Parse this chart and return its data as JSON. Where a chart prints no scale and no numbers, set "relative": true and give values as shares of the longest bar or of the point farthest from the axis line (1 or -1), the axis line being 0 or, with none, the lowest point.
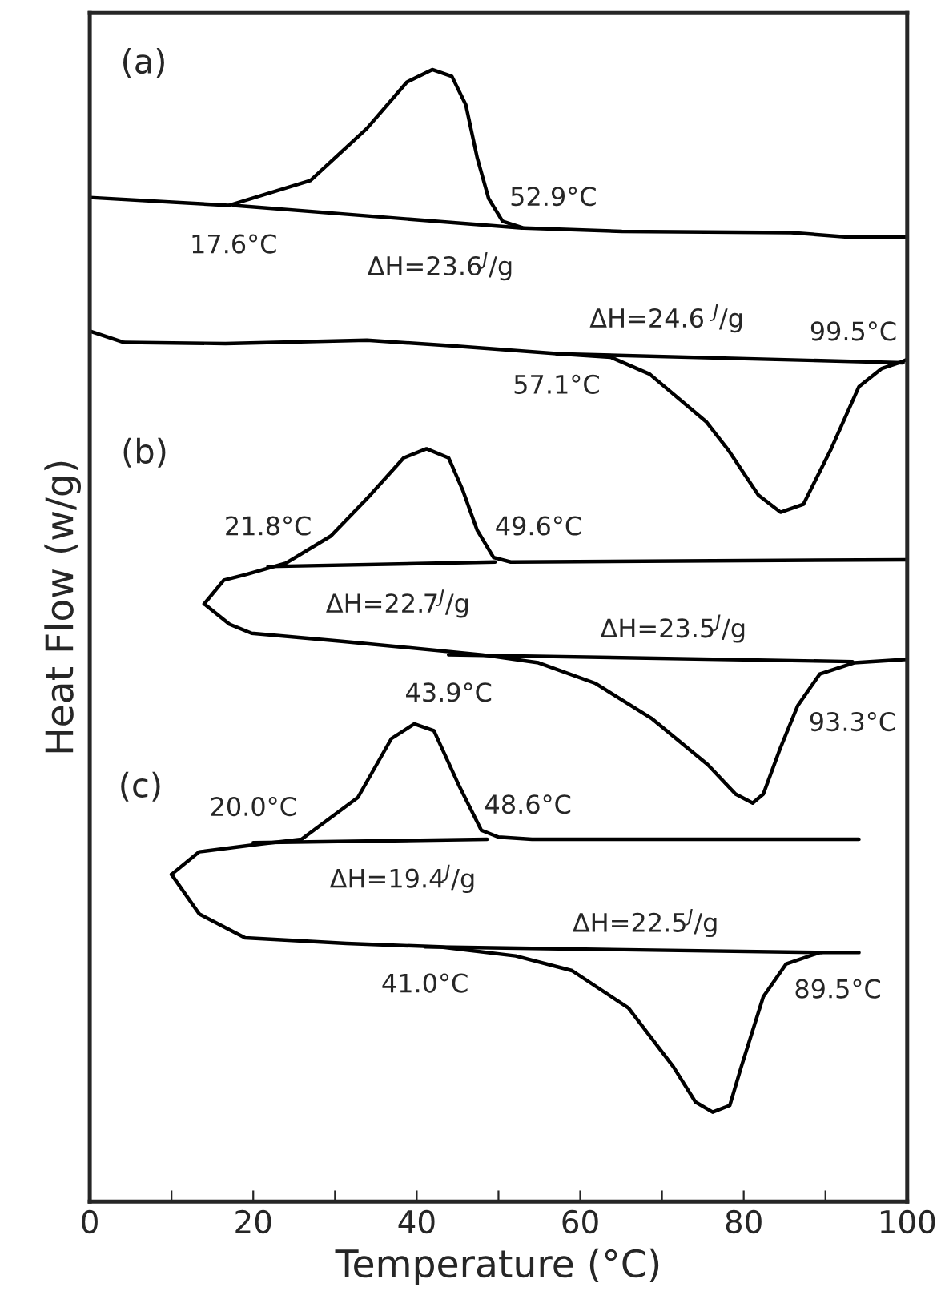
{
  "chart_data": {
    "type": "line",
    "relative": true,
    "xlabel": "Temperature (°C)",
    "ylabel": "Heat Flow (w/g)",
    "xlim": [
      0,
      100
    ],
    "xticks": [
      0,
      {
        "value": 10,
        "label": null
      },
      20,
      {
        "value": 30,
        "label": null
      },
      40,
      {
        "value": 50,
        "label": null
      },
      60,
      {
        "value": 70,
        "label": null
      },
      80,
      {
        "value": 90,
        "label": null
      },
      100
    ],
    "tick_labels": "x",
    "grid": false,
    "marker": "none",
    "line_style": "solid",
    "series": [
      {
        "color": "#000000",
        "x": [
          0,
          17.0,
          27.0,
          33.9,
          38.8,
          41.9,
          44.3,
          46.0,
          47.4,
          48.8,
          50.5,
          53.1,
          65.1,
          85.8,
          92.7,
          100
        ],
        "values": [
          0.887,
          0.88,
          0.902,
          0.948,
          0.989,
          1.0,
          0.994,
          0.969,
          0.922,
          0.886,
          0.866,
          0.86,
          0.857,
          0.856,
          0.852,
          0.852
        ]
      },
      {
        "color": "#000000",
        "x": [
          17.6,
          52.9
        ],
        "values": [
          0.88,
          0.86
        ]
      },
      {
        "color": "#000000",
        "x": [
          0,
          4.2,
          16.6,
          33.9,
          44.3,
          57.4,
          63.7,
          68.5,
          75.4,
          78.2,
          81.8,
          84.5,
          87.3,
          90.7,
          94.1,
          96.9,
          99.0,
          100
        ],
        "values": [
          0.769,
          0.759,
          0.758,
          0.761,
          0.756,
          0.749,
          0.746,
          0.731,
          0.689,
          0.663,
          0.624,
          0.609,
          0.616,
          0.665,
          0.72,
          0.736,
          0.741,
          0.744
        ]
      },
      {
        "color": "#000000",
        "x": [
          57.1,
          99.5
        ],
        "values": [
          0.749,
          0.741
        ]
      },
      {
        "color": "#000000",
        "x": [
          14.0,
          16.4,
          19.1,
          24.0,
          29.5,
          34.3,
          38.4,
          41.2,
          43.9,
          45.6,
          47.4,
          49.4,
          51.5,
          100
        ],
        "values": [
          0.528,
          0.549,
          0.554,
          0.564,
          0.588,
          0.624,
          0.657,
          0.665,
          0.657,
          0.629,
          0.593,
          0.569,
          0.565,
          0.567
        ]
      },
      {
        "color": "#000000",
        "x": [
          21.8,
          49.6
        ],
        "values": [
          0.561,
          0.565
        ]
      },
      {
        "color": "#000000",
        "x": [
          14.0,
          17.1,
          19.8,
          30.8,
          48.0,
          54.9,
          61.8,
          68.7,
          75.6,
          79.0,
          81.1,
          82.4,
          84.5,
          86.6,
          89.3,
          93.5,
          100
        ],
        "values": [
          0.528,
          0.51,
          0.502,
          0.495,
          0.483,
          0.476,
          0.458,
          0.427,
          0.386,
          0.36,
          0.352,
          0.36,
          0.401,
          0.438,
          0.466,
          0.476,
          0.479
        ]
      },
      {
        "color": "#000000",
        "x": [
          43.9,
          93.3
        ],
        "values": [
          0.483,
          0.477
        ]
      },
      {
        "color": "#000000",
        "x": [
          10.0,
          13.4,
          21.0,
          25.9,
          32.8,
          36.9,
          39.7,
          42.1,
          45.2,
          47.9,
          50.0,
          54.1,
          94.1
        ],
        "values": [
          0.289,
          0.309,
          0.316,
          0.32,
          0.357,
          0.409,
          0.422,
          0.416,
          0.367,
          0.328,
          0.322,
          0.32,
          0.32
        ]
      },
      {
        "color": "#000000",
        "x": [
          20.0,
          48.6
        ],
        "values": [
          0.317,
          0.32
        ]
      },
      {
        "color": "#000000",
        "x": [
          10.0,
          13.4,
          19.0,
          31.4,
          42.8,
          52.1,
          59.0,
          65.9,
          71.4,
          74.1,
          76.2,
          78.3,
          79.7,
          82.4,
          85.2,
          89.3,
          94.1
        ],
        "values": [
          0.289,
          0.254,
          0.233,
          0.228,
          0.225,
          0.217,
          0.204,
          0.171,
          0.119,
          0.088,
          0.079,
          0.085,
          0.119,
          0.181,
          0.21,
          0.22,
          0.22
        ]
      },
      {
        "color": "#000000",
        "x": [
          41.0,
          89.5
        ],
        "values": [
          0.225,
          0.22
        ]
      }
    ],
    "annotations": [
      "(a)",
      {
        "text": "17.6°C",
        "x": 17.6,
        "y": 0.88
      },
      {
        "text": "52.9°C",
        "x": 52.9,
        "y": 0.86
      },
      {
        "text": "ΔH=23.6$^{J}$/g",
        "x": 35,
        "y": 0.87
      },
      {
        "text": "ΔH=24.6 $^{J}$/g",
        "x": 78,
        "y": 0.745
      },
      {
        "text": "99.5°C",
        "x": 99.5,
        "y": 0.741
      },
      {
        "text": "57.1°C",
        "x": 57.1,
        "y": 0.749
      },
      "(b)",
      {
        "text": "21.8°C",
        "x": 21.8,
        "y": 0.561
      },
      {
        "text": "49.6°C",
        "x": 49.6,
        "y": 0.565
      },
      {
        "text": "ΔH=22.7$^{J}$/g",
        "x": 35,
        "y": 0.563
      },
      {
        "text": "ΔH=23.5$^{J}$/g",
        "x": 70,
        "y": 0.48
      },
      {
        "text": "43.9°C",
        "x": 43.9,
        "y": 0.483
      },
      {
        "text": "93.3°C",
        "x": 93.3,
        "y": 0.477
      },
      "(c)",
      {
        "text": "20.0°C",
        "x": 20.0,
        "y": 0.317
      },
      {
        "text": "48.6°C",
        "x": 48.6,
        "y": 0.32
      },
      {
        "text": "ΔH=19.4$^{J}$/g",
        "x": 35,
        "y": 0.318
      },
      {
        "text": "ΔH=22.5$^{J}$/g",
        "x": 70,
        "y": 0.222
      },
      {
        "text": "41.0°C",
        "x": 41.0,
        "y": 0.225
      },
      {
        "text": "89.5°C",
        "x": 89.5,
        "y": 0.22
      }
    ]
  }
}
